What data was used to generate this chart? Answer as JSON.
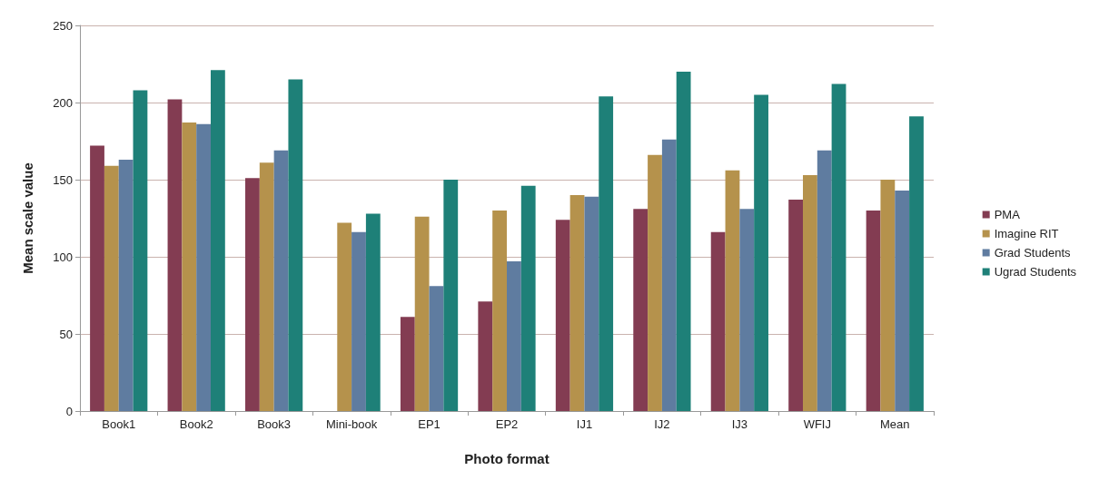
{
  "chart_data": {
    "type": "bar",
    "xlabel": "Photo format",
    "ylabel": "Mean scale value",
    "categories": [
      "Book1",
      "Book2",
      "Book3",
      "Mini-book",
      "EP1",
      "EP2",
      "IJ1",
      "IJ2",
      "IJ3",
      "WFIJ",
      "Mean"
    ],
    "series": [
      {
        "name": "PMA",
        "color": "#833c52",
        "values": [
          172,
          202,
          151,
          null,
          61,
          71,
          124,
          131,
          116,
          137,
          130
        ]
      },
      {
        "name": "Imagine RIT",
        "color": "#b5924c",
        "values": [
          159,
          187,
          161,
          122,
          126,
          130,
          140,
          166,
          156,
          153,
          150
        ]
      },
      {
        "name": "Grad Students",
        "color": "#5f7ca0",
        "values": [
          163,
          186,
          169,
          116,
          81,
          97,
          139,
          176,
          131,
          169,
          143
        ]
      },
      {
        "name": "Ugrad Students",
        "color": "#1e8078",
        "values": [
          208,
          221,
          215,
          128,
          150,
          146,
          204,
          220,
          205,
          212,
          191
        ]
      }
    ],
    "ylim": [
      0,
      250
    ],
    "yticks": [
      0,
      50,
      100,
      150,
      200,
      250
    ],
    "grid": "y",
    "legend": "right"
  }
}
